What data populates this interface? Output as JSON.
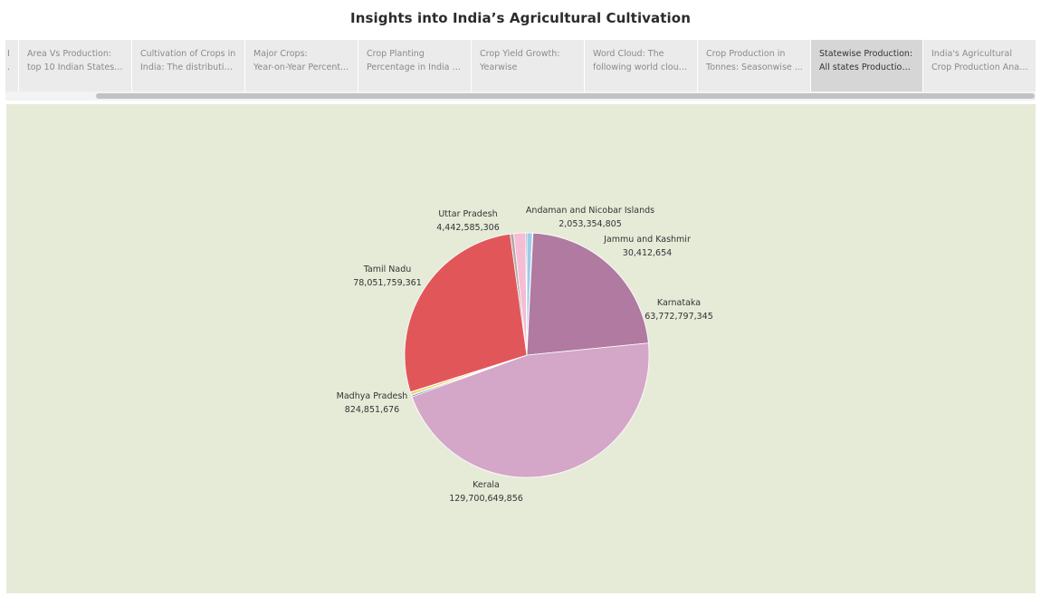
{
  "page": {
    "title": "Insights into India’s Agricultural Cultivation"
  },
  "tabs": [
    {
      "line1": "I.",
      "line2": ".",
      "active": false
    },
    {
      "line1": "Area Vs Production:",
      "line2": "top 10 Indian States a...",
      "active": false
    },
    {
      "line1": "Cultivation of Crops in",
      "line2": "India: The distributio...",
      "active": false
    },
    {
      "line1": "Major Crops:",
      "line2": "Year-on-Year Percent...",
      "active": false
    },
    {
      "line1": "Crop Planting",
      "line2": "Percentage in India b...",
      "active": false
    },
    {
      "line1": "Crop Yield Growth:",
      "line2": "Yearwise",
      "active": false
    },
    {
      "line1": "Word Cloud: The",
      "line2": "following world cloud...",
      "active": false
    },
    {
      "line1": "Crop Production in",
      "line2": "Tonnes: Seasonwise ...",
      "active": false
    },
    {
      "line1": "Statewise Production:",
      "line2": "All states Production ...",
      "active": true
    },
    {
      "line1": "India's Agricultural",
      "line2": "Crop Production Anal...",
      "active": false
    }
  ],
  "colors": {
    "background": "#e6ebd8",
    "active_tab": "#d6d6d6"
  },
  "chart_data": {
    "type": "pie",
    "title": "",
    "slices": [
      {
        "label": "Andaman and Nicobar Islands",
        "value": 2053354805,
        "value_text": "2,053,354,805",
        "color": "#9fcae8",
        "labeled": true
      },
      {
        "label": "",
        "value": 120000000,
        "color": "#f7b368",
        "labeled": false
      },
      {
        "label": "",
        "value": 55000000,
        "color": "#d9534f",
        "labeled": false
      },
      {
        "label": "Jammu and Kashmir",
        "value": 30412654,
        "value_text": "30,412,654",
        "color": "#c94a4a",
        "labeled": true
      },
      {
        "label": "Karnataka",
        "value": 63772797345,
        "value_text": "63,772,797,345",
        "color": "#b07aa1",
        "labeled": true
      },
      {
        "label": "Kerala",
        "value": 129700649856,
        "value_text": "129,700,649,856",
        "color": "#d4a6c8",
        "labeled": true
      },
      {
        "label": "",
        "value": 500000000,
        "color": "#4e79a7",
        "labeled": false
      },
      {
        "label": "",
        "value": 350000000,
        "color": "#59a14f",
        "labeled": false
      },
      {
        "label": "Madhya Pradesh",
        "value": 824851676,
        "value_text": "824,851,676",
        "color": "#edc948",
        "labeled": true
      },
      {
        "label": "",
        "value": 200000000,
        "color": "#e8a0b4",
        "labeled": false
      },
      {
        "label": "Tamil Nadu",
        "value": 78051759361,
        "value_text": "78,051,759,361",
        "color": "#e15759",
        "labeled": true
      },
      {
        "label": "",
        "value": 1300000000,
        "color": "#b5a8a8",
        "labeled": false
      },
      {
        "label": "Uttar Pradesh",
        "value": 4442585306,
        "value_text": "4,442,585,306",
        "color": "#f5bcd3",
        "labeled": true
      },
      {
        "label": "",
        "value": 400000000,
        "color": "#3d6ea1",
        "labeled": false
      }
    ]
  }
}
